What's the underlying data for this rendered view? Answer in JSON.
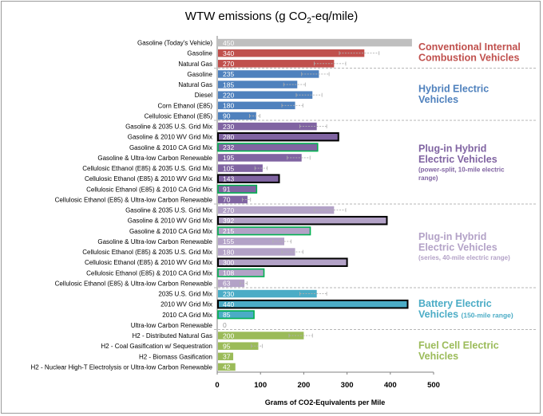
{
  "chart_data": {
    "type": "bar",
    "orientation": "horizontal",
    "title_main": "WTW emissions (g CO",
    "title_sub": "2",
    "title_end": "-eq/mile)",
    "xlabel": "Grams of CO2-Equivalents per Mile",
    "xlim": [
      0,
      500
    ],
    "xticks": [
      "0",
      "100",
      "200",
      "300",
      "400",
      "500"
    ],
    "groups": [
      {
        "name": "conventional",
        "title_lines": [
          "Conventional Internal",
          "Combustion Vehicles"
        ],
        "subtitle_lines": [],
        "color": "#c0504d",
        "bars": [
          {
            "category": "Gasoline (Today's Vehicle)",
            "value": 450,
            "label": "450",
            "color": "#bfbfbf",
            "err": false
          },
          {
            "category": "Gasoline",
            "value": 340,
            "label": "340",
            "err": true
          },
          {
            "category": "Natural Gas",
            "value": 270,
            "label": "270",
            "err": true
          }
        ]
      },
      {
        "name": "hybrid",
        "title_lines": [
          "Hybrid Electric",
          "Vehicles"
        ],
        "subtitle_lines": [],
        "color": "#4f81bd",
        "bars": [
          {
            "category": "Gasoline",
            "value": 235,
            "label": "235",
            "err": true
          },
          {
            "category": "Natural Gas",
            "value": 185,
            "label": "185",
            "err": true
          },
          {
            "category": "Diesel",
            "value": 220,
            "label": "220",
            "err": true
          },
          {
            "category": "Corn Ethanol (E85)",
            "value": 180,
            "label": "180",
            "err": true
          },
          {
            "category": "Cellulosic Ethanol (E85)",
            "value": 90,
            "label": "90",
            "err": true
          }
        ]
      },
      {
        "name": "phev10",
        "title_lines": [
          "Plug-in Hybrid",
          "Electric Vehicles"
        ],
        "subtitle_lines": [
          "(power-split, 10-mile electric",
          "range)"
        ],
        "color": "#8064a2",
        "bars": [
          {
            "category": "Gasoline & 2035 U.S. Grid Mix",
            "value": 230,
            "label": "230",
            "err": true
          },
          {
            "category": "Gasoline & 2010 WV Grid Mix",
            "value": 280,
            "label": "280",
            "outline": "#000000",
            "err": false
          },
          {
            "category": "Gasoline & 2010 CA Grid Mix",
            "value": 232,
            "label": "232",
            "outline": "#00b050",
            "err": false
          },
          {
            "category": "Gasoline & Ultra-low Carbon Renewable",
            "value": 195,
            "label": "195",
            "err": true
          },
          {
            "category": "Cellulosic Ethanol (E85) & 2035 U.S. Grid Mix",
            "value": 105,
            "label": "105",
            "err": true
          },
          {
            "category": "Cellulosic Ethanol (E85) & 2010 WV Grid Mix",
            "value": 143,
            "label": "143",
            "outline": "#000000",
            "err": false
          },
          {
            "category": "Cellulosic Ethanol (E85) & 2010 CA Grid Mix",
            "value": 91,
            "label": "91",
            "outline": "#00b050",
            "err": false
          },
          {
            "category": "Cellulosic Ethanol (E85) & Ultra-low Carbon Renewable",
            "value": 70,
            "label": "70",
            "err": true
          }
        ]
      },
      {
        "name": "phev40",
        "title_lines": [
          "Plug-in Hybrid",
          "Electric Vehicles"
        ],
        "subtitle_lines": [
          "(series, 40-mile electric range)"
        ],
        "color": "#b3a2c7",
        "bars": [
          {
            "category": "Gasoline & 2035 U.S. Grid Mix",
            "value": 270,
            "label": "270",
            "err": true
          },
          {
            "category": "Gasoline & 2010 WV Grid Mix",
            "value": 392,
            "label": "392",
            "outline": "#000000",
            "err": false
          },
          {
            "category": "Gasoline & 2010 CA Grid Mix",
            "value": 215,
            "label": "215",
            "outline": "#00b050",
            "err": false
          },
          {
            "category": "Gasoline & Ultra-low Carbon Renewable",
            "value": 155,
            "label": "155",
            "err": true
          },
          {
            "category": "Cellulosic Ethanol (E85) & 2035 U.S. Grid Mix",
            "value": 180,
            "label": "180",
            "err": true
          },
          {
            "category": "Cellulosic Ethanol (E85) & 2010 WV Grid Mix",
            "value": 300,
            "label": "300",
            "outline": "#000000",
            "err": false
          },
          {
            "category": "Cellulosic Ethanol (E85) & 2010 CA Grid Mix",
            "value": 108,
            "label": "108",
            "outline": "#00b050",
            "err": false
          },
          {
            "category": "Cellulosic Ethanol (E85) & Ultra-low Carbon Renewable",
            "value": 63,
            "label": "63",
            "err": true
          }
        ]
      },
      {
        "name": "bev",
        "title_lines": [
          "Battery Electric"
        ],
        "title_tail": [
          "Vehicles",
          "(150-mile range)"
        ],
        "subtitle_lines": [],
        "color": "#4bacc6",
        "bars": [
          {
            "category": "2035 U.S. Grid Mix",
            "value": 230,
            "label": "230",
            "err": true
          },
          {
            "category": "2010 WV Grid Mix",
            "value": 440,
            "label": "440",
            "outline": "#000000",
            "err": false
          },
          {
            "category": "2010 CA Grid Mix",
            "value": 85,
            "label": "85",
            "outline": "#00b050",
            "err": false
          },
          {
            "category": "Ultra-low Carbon Renewable",
            "value": 0,
            "label": "0",
            "err": false
          }
        ]
      },
      {
        "name": "fcev",
        "title_lines": [
          "Fuel Cell Electric",
          "Vehicles"
        ],
        "subtitle_lines": [],
        "color": "#9bbb59",
        "bars": [
          {
            "category": "H2 - Distributed Natural Gas",
            "value": 200,
            "label": "200",
            "err": true
          },
          {
            "category": "H2 - Coal Gasification w/ Sequestration",
            "value": 95,
            "label": "95",
            "err": true
          },
          {
            "category": "H2 - Biomass Gasification",
            "value": 37,
            "label": "37",
            "err": false
          },
          {
            "category": "H2 - Nuclear High-T Electrolysis or Ultra-low Carbon Renewable",
            "value": 42,
            "label": "42",
            "err": false
          }
        ]
      }
    ]
  }
}
